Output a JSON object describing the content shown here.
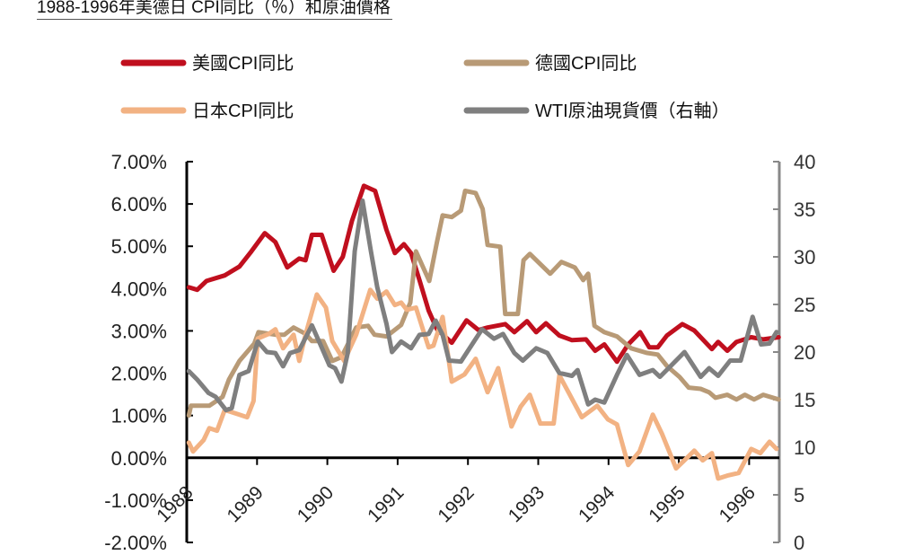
{
  "chart_data": {
    "type": "line",
    "title": "1988-1996年美德日 CPI同比（％）和原油價格",
    "xlabel": "",
    "ylabel": "",
    "xlim": [
      1988,
      1996.44
    ],
    "ylim": [
      -2,
      7
    ],
    "y2lim": [
      0,
      40
    ],
    "grid": false,
    "legend_position": "top",
    "x_ticks": [
      "1988",
      "1989",
      "1990",
      "1991",
      "1992",
      "1993",
      "1994",
      "1995",
      "1996"
    ],
    "y_ticks": [
      "7.00%",
      "6.00%",
      "5.00%",
      "4.00%",
      "3.00%",
      "2.00%",
      "1.00%",
      "0.00%",
      "-1.00%",
      "-2.00%"
    ],
    "y2_ticks": [
      "40",
      "35",
      "30",
      "25",
      "20",
      "15",
      "10",
      "5",
      "0"
    ],
    "series": [
      {
        "name": "美國CPI同比",
        "axis": "left",
        "color": "#c00f1e",
        "points": [
          [
            1988.03,
            4.03
          ],
          [
            1988.15,
            3.97
          ],
          [
            1988.28,
            4.18
          ],
          [
            1988.54,
            4.31
          ],
          [
            1988.75,
            4.52
          ],
          [
            1988.92,
            4.88
          ],
          [
            1989.11,
            5.31
          ],
          [
            1989.26,
            5.1
          ],
          [
            1989.43,
            4.5
          ],
          [
            1989.6,
            4.71
          ],
          [
            1989.69,
            4.67
          ],
          [
            1989.78,
            5.27
          ],
          [
            1989.92,
            5.27
          ],
          [
            1990.09,
            4.42
          ],
          [
            1990.22,
            4.75
          ],
          [
            1990.35,
            5.6
          ],
          [
            1990.52,
            6.43
          ],
          [
            1990.68,
            6.31
          ],
          [
            1990.84,
            5.39
          ],
          [
            1990.96,
            4.84
          ],
          [
            1991.09,
            5.05
          ],
          [
            1991.19,
            4.84
          ],
          [
            1991.31,
            4.2
          ],
          [
            1991.44,
            3.48
          ],
          [
            1991.56,
            3.04
          ],
          [
            1991.77,
            2.72
          ],
          [
            1991.98,
            3.25
          ],
          [
            1992.15,
            3.02
          ],
          [
            1992.28,
            3.08
          ],
          [
            1992.53,
            3.16
          ],
          [
            1992.66,
            2.97
          ],
          [
            1992.84,
            3.23
          ],
          [
            1992.97,
            2.97
          ],
          [
            1993.11,
            3.18
          ],
          [
            1993.3,
            2.89
          ],
          [
            1993.48,
            2.78
          ],
          [
            1993.68,
            2.8
          ],
          [
            1993.81,
            2.53
          ],
          [
            1993.94,
            2.68
          ],
          [
            1994.12,
            2.27
          ],
          [
            1994.28,
            2.68
          ],
          [
            1994.45,
            2.97
          ],
          [
            1994.58,
            2.61
          ],
          [
            1994.7,
            2.61
          ],
          [
            1994.83,
            2.89
          ],
          [
            1995.05,
            3.16
          ],
          [
            1995.22,
            3.01
          ],
          [
            1995.47,
            2.57
          ],
          [
            1995.56,
            2.74
          ],
          [
            1995.69,
            2.53
          ],
          [
            1995.82,
            2.74
          ],
          [
            1996.03,
            2.85
          ],
          [
            1996.2,
            2.8
          ],
          [
            1996.42,
            2.85
          ]
        ]
      },
      {
        "name": "德國CPI同比",
        "axis": "left",
        "color": "#b89a76",
        "points": [
          [
            1988.03,
            1.0
          ],
          [
            1988.06,
            1.23
          ],
          [
            1988.32,
            1.23
          ],
          [
            1988.51,
            1.44
          ],
          [
            1988.6,
            1.85
          ],
          [
            1988.75,
            2.29
          ],
          [
            1988.96,
            2.7
          ],
          [
            1989.02,
            2.97
          ],
          [
            1989.26,
            2.91
          ],
          [
            1989.39,
            2.91
          ],
          [
            1989.52,
            3.08
          ],
          [
            1989.69,
            2.93
          ],
          [
            1989.78,
            2.76
          ],
          [
            1989.94,
            2.76
          ],
          [
            1990.07,
            2.29
          ],
          [
            1990.2,
            2.38
          ],
          [
            1990.41,
            3.08
          ],
          [
            1990.58,
            3.12
          ],
          [
            1990.67,
            2.91
          ],
          [
            1990.84,
            2.87
          ],
          [
            1991.05,
            3.14
          ],
          [
            1991.18,
            3.67
          ],
          [
            1991.26,
            4.88
          ],
          [
            1991.45,
            4.18
          ],
          [
            1991.56,
            5.1
          ],
          [
            1991.64,
            5.73
          ],
          [
            1991.77,
            5.69
          ],
          [
            1991.9,
            5.84
          ],
          [
            1991.96,
            6.31
          ],
          [
            1992.11,
            6.26
          ],
          [
            1992.21,
            5.88
          ],
          [
            1992.28,
            5.03
          ],
          [
            1992.46,
            4.99
          ],
          [
            1992.53,
            3.4
          ],
          [
            1992.71,
            3.4
          ],
          [
            1992.79,
            4.67
          ],
          [
            1992.88,
            4.82
          ],
          [
            1993.17,
            4.35
          ],
          [
            1993.33,
            4.63
          ],
          [
            1993.52,
            4.5
          ],
          [
            1993.64,
            4.2
          ],
          [
            1993.71,
            4.35
          ],
          [
            1993.8,
            3.12
          ],
          [
            1993.94,
            2.97
          ],
          [
            1994.12,
            2.87
          ],
          [
            1994.32,
            2.59
          ],
          [
            1994.54,
            2.48
          ],
          [
            1994.7,
            2.44
          ],
          [
            1994.83,
            2.17
          ],
          [
            1995.01,
            1.91
          ],
          [
            1995.14,
            1.66
          ],
          [
            1995.31,
            1.63
          ],
          [
            1995.43,
            1.55
          ],
          [
            1995.52,
            1.42
          ],
          [
            1995.69,
            1.49
          ],
          [
            1995.82,
            1.38
          ],
          [
            1995.94,
            1.49
          ],
          [
            1996.07,
            1.38
          ],
          [
            1996.2,
            1.49
          ],
          [
            1996.42,
            1.38
          ]
        ]
      },
      {
        "name": "日本CPI同比",
        "axis": "left",
        "color": "#f2b283",
        "points": [
          [
            1988.03,
            0.36
          ],
          [
            1988.09,
            0.15
          ],
          [
            1988.24,
            0.42
          ],
          [
            1988.32,
            0.7
          ],
          [
            1988.43,
            0.64
          ],
          [
            1988.54,
            1.13
          ],
          [
            1988.75,
            1.02
          ],
          [
            1988.86,
            0.96
          ],
          [
            1988.95,
            1.34
          ],
          [
            1989.01,
            2.82
          ],
          [
            1989.17,
            2.93
          ],
          [
            1989.26,
            3.04
          ],
          [
            1989.37,
            2.59
          ],
          [
            1989.52,
            2.91
          ],
          [
            1989.6,
            2.29
          ],
          [
            1989.69,
            2.91
          ],
          [
            1989.85,
            3.86
          ],
          [
            1989.98,
            3.55
          ],
          [
            1990.07,
            2.76
          ],
          [
            1990.24,
            2.29
          ],
          [
            1990.41,
            2.91
          ],
          [
            1990.61,
            3.97
          ],
          [
            1990.71,
            3.76
          ],
          [
            1990.84,
            3.93
          ],
          [
            1990.96,
            3.61
          ],
          [
            1991.05,
            3.67
          ],
          [
            1991.13,
            3.5
          ],
          [
            1991.26,
            3.55
          ],
          [
            1991.44,
            2.61
          ],
          [
            1991.51,
            2.65
          ],
          [
            1991.64,
            3.33
          ],
          [
            1991.77,
            1.8
          ],
          [
            1991.95,
            1.97
          ],
          [
            1992.11,
            2.34
          ],
          [
            1992.28,
            1.55
          ],
          [
            1992.43,
            2.12
          ],
          [
            1992.62,
            0.74
          ],
          [
            1992.75,
            1.21
          ],
          [
            1992.88,
            1.49
          ],
          [
            1993.03,
            0.81
          ],
          [
            1993.22,
            0.81
          ],
          [
            1993.3,
            1.95
          ],
          [
            1993.43,
            1.55
          ],
          [
            1993.62,
            0.96
          ],
          [
            1993.84,
            1.23
          ],
          [
            1993.99,
            0.91
          ],
          [
            1994.12,
            0.79
          ],
          [
            1994.28,
            -0.17
          ],
          [
            1994.44,
            0.15
          ],
          [
            1994.63,
            1.02
          ],
          [
            1994.76,
            0.57
          ],
          [
            1994.96,
            -0.25
          ],
          [
            1995.22,
            0.17
          ],
          [
            1995.34,
            -0.06
          ],
          [
            1995.47,
            0.11
          ],
          [
            1995.56,
            -0.49
          ],
          [
            1995.69,
            -0.42
          ],
          [
            1995.85,
            -0.36
          ],
          [
            1996.03,
            0.21
          ],
          [
            1996.16,
            0.11
          ],
          [
            1996.29,
            0.38
          ],
          [
            1996.39,
            0.21
          ]
        ]
      },
      {
        "name": "WTI原油現貨價（右軸）",
        "axis": "right",
        "color": "#7f7f7f",
        "points": [
          [
            1988.03,
            18.0
          ],
          [
            1988.15,
            17.1
          ],
          [
            1988.31,
            15.7
          ],
          [
            1988.41,
            15.3
          ],
          [
            1988.56,
            13.9
          ],
          [
            1988.64,
            14.1
          ],
          [
            1988.75,
            17.6
          ],
          [
            1988.88,
            18.0
          ],
          [
            1989.01,
            21.1
          ],
          [
            1989.14,
            20.0
          ],
          [
            1989.26,
            19.9
          ],
          [
            1989.37,
            18.5
          ],
          [
            1989.47,
            19.9
          ],
          [
            1989.6,
            20.2
          ],
          [
            1989.78,
            22.8
          ],
          [
            1989.9,
            20.8
          ],
          [
            1990.03,
            18.6
          ],
          [
            1990.11,
            18.3
          ],
          [
            1990.2,
            16.9
          ],
          [
            1990.29,
            19.9
          ],
          [
            1990.39,
            30.6
          ],
          [
            1990.5,
            35.9
          ],
          [
            1990.62,
            30.6
          ],
          [
            1990.71,
            26.8
          ],
          [
            1990.84,
            23.0
          ],
          [
            1990.92,
            20.0
          ],
          [
            1991.05,
            21.1
          ],
          [
            1991.19,
            20.4
          ],
          [
            1991.31,
            21.8
          ],
          [
            1991.44,
            21.9
          ],
          [
            1991.54,
            23.3
          ],
          [
            1991.64,
            21.8
          ],
          [
            1991.73,
            19.1
          ],
          [
            1991.9,
            19.0
          ],
          [
            1992.05,
            20.7
          ],
          [
            1992.2,
            22.4
          ],
          [
            1992.37,
            21.4
          ],
          [
            1992.5,
            21.9
          ],
          [
            1992.66,
            19.9
          ],
          [
            1992.78,
            19.1
          ],
          [
            1992.97,
            20.4
          ],
          [
            1993.13,
            19.9
          ],
          [
            1993.3,
            17.8
          ],
          [
            1993.48,
            17.5
          ],
          [
            1993.56,
            18.1
          ],
          [
            1993.71,
            14.5
          ],
          [
            1993.81,
            15.0
          ],
          [
            1993.94,
            14.7
          ],
          [
            1994.12,
            17.6
          ],
          [
            1994.26,
            19.7
          ],
          [
            1994.44,
            17.6
          ],
          [
            1994.63,
            18.1
          ],
          [
            1994.73,
            17.4
          ],
          [
            1994.88,
            18.5
          ],
          [
            1995.08,
            20.0
          ],
          [
            1995.31,
            17.4
          ],
          [
            1995.43,
            18.3
          ],
          [
            1995.56,
            17.5
          ],
          [
            1995.73,
            19.1
          ],
          [
            1995.88,
            19.1
          ],
          [
            1996.05,
            23.7
          ],
          [
            1996.17,
            20.8
          ],
          [
            1996.29,
            20.9
          ],
          [
            1996.39,
            22.1
          ]
        ]
      }
    ]
  }
}
